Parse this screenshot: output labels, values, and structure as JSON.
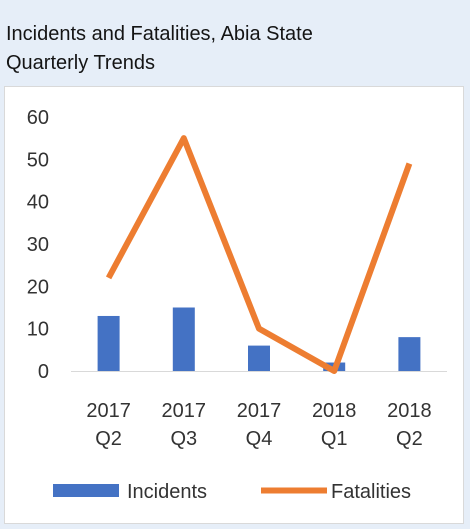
{
  "header": {
    "title_line1": "Incidents and Fatalities, Abia State",
    "title_line2": "Quarterly Trends"
  },
  "chart_data": {
    "type": "bar",
    "title": "Incidents and Fatalities, Abia State Quarterly Trends",
    "categories": [
      [
        "2017",
        "Q2"
      ],
      [
        "2017",
        "Q3"
      ],
      [
        "2017",
        "Q4"
      ],
      [
        "2018",
        "Q1"
      ],
      [
        "2018",
        "Q2"
      ]
    ],
    "yticks": [
      "0",
      "10",
      "20",
      "30",
      "40",
      "50",
      "60"
    ],
    "ylim": [
      0,
      60
    ],
    "grid": false,
    "legend_position": "bottom",
    "series": [
      {
        "name": "Incidents",
        "type": "bar",
        "color": "#4472c4",
        "values": [
          13,
          15,
          6,
          2,
          8
        ]
      },
      {
        "name": "Fatalities",
        "type": "line",
        "color": "#ed7d31",
        "values": [
          22,
          55,
          10,
          0,
          49
        ]
      }
    ]
  }
}
